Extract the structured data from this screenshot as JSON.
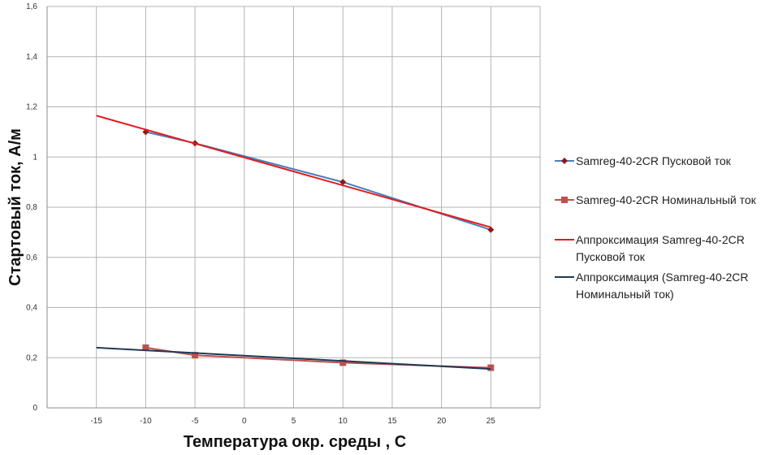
{
  "chart_data": {
    "type": "line",
    "title": "",
    "xlabel": "Температура окр. среды , С",
    "ylabel": "Стартовый ток, А/м",
    "xlim": [
      -20,
      30
    ],
    "ylim": [
      0,
      1.6
    ],
    "x_ticks": [
      -15,
      -10,
      -5,
      0,
      5,
      10,
      15,
      20,
      25
    ],
    "x_tick_labels": [
      "-15",
      "-10",
      "-5",
      "0",
      "5",
      "10",
      "15",
      "20",
      "25"
    ],
    "y_ticks": [
      0,
      0.2,
      0.4,
      0.6,
      0.8,
      1.0,
      1.2,
      1.4,
      1.6
    ],
    "y_tick_labels": [
      "0",
      "0,2",
      "0,4",
      "0,6",
      "0,8",
      "1",
      "1,2",
      "1,4",
      "1,6"
    ],
    "grid": true,
    "legend_position": "right",
    "series": [
      {
        "name": "Samreg-40-2CR Пусковой ток",
        "kind": "markers-line",
        "marker": "diamond",
        "line_color": "#4a7ebb",
        "marker_color": "#8b1a1a",
        "x": [
          -10,
          -5,
          10,
          25
        ],
        "y": [
          1.1,
          1.055,
          0.9,
          0.71
        ]
      },
      {
        "name": "Samreg-40-2CR Номинальный ток",
        "kind": "markers-line",
        "marker": "square",
        "line_color": "#c0504d",
        "marker_color": "#c0504d",
        "x": [
          -10,
          -5,
          10,
          25
        ],
        "y": [
          0.24,
          0.21,
          0.18,
          0.16
        ]
      },
      {
        "name": "Аппроксимация Samreg-40-2CR Пусковой ток",
        "kind": "trendline",
        "line_color": "#e31a1c",
        "x": [
          -15,
          25
        ],
        "y": [
          1.165,
          0.72
        ]
      },
      {
        "name": "Аппроксимация (Samreg-40-2CR Номинальный ток)",
        "kind": "trendline",
        "line_color": "#1f3a55",
        "x": [
          -15,
          25
        ],
        "y": [
          0.24,
          0.155
        ]
      }
    ]
  }
}
